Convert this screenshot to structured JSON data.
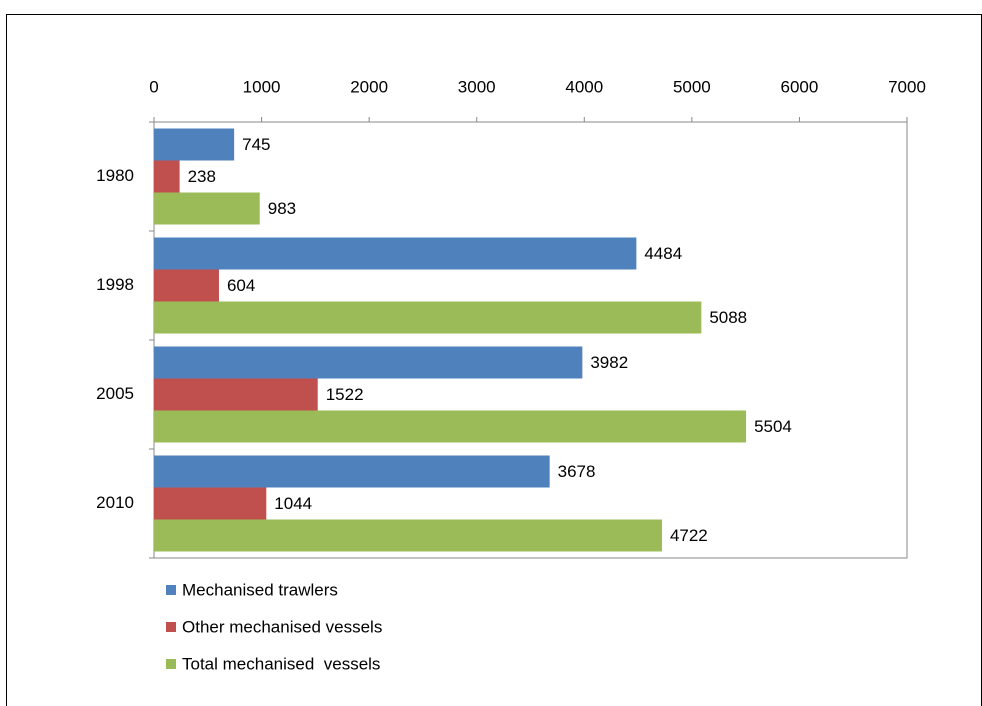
{
  "chart_data": {
    "type": "bar",
    "orientation": "horizontal",
    "categories": [
      "1980",
      "1998",
      "2005",
      "2010"
    ],
    "series": [
      {
        "name": "Mechanised trawlers",
        "color": "#4f81bd",
        "values": [
          745,
          4484,
          3982,
          3678
        ]
      },
      {
        "name": "Other mechanised vessels",
        "color": "#c0504d",
        "values": [
          238,
          604,
          1522,
          1044
        ]
      },
      {
        "name": "Total mechanised  vessels",
        "color": "#9bbb59",
        "values": [
          983,
          5088,
          5504,
          4722
        ]
      }
    ],
    "xlim": [
      0,
      7000
    ],
    "xticks": [
      0,
      1000,
      2000,
      3000,
      4000,
      5000,
      6000,
      7000
    ],
    "legend": "bottom-left",
    "grid": false
  }
}
